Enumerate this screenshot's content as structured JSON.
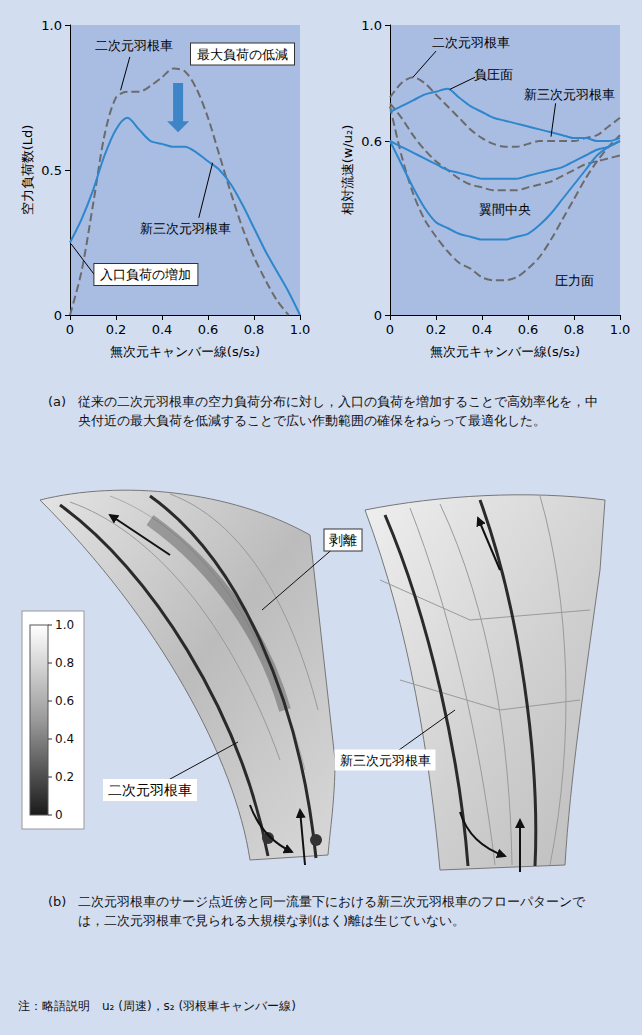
{
  "chart_data": [
    {
      "type": "line",
      "xlabel": "無次元キャンバー線(s/s₂)",
      "ylabel": "空力負荷数(Ld)",
      "x": [
        0,
        0.05,
        0.1,
        0.15,
        0.2,
        0.25,
        0.3,
        0.35,
        0.4,
        0.45,
        0.5,
        0.55,
        0.6,
        0.65,
        0.7,
        0.75,
        0.8,
        0.85,
        0.9,
        0.95,
        1.0
      ],
      "xlim": [
        0,
        1
      ],
      "ylim": [
        0,
        1
      ],
      "xticks": [
        0,
        0.2,
        0.4,
        0.6,
        0.8,
        {
          "value": 1,
          "label": "1.0"
        }
      ],
      "yticks": [
        0,
        0.5,
        {
          "value": 1,
          "label": "1.0"
        }
      ],
      "grid": false,
      "series": [
        {
          "name": "二次元羽根車",
          "color": "#6b6b6b",
          "line_style": "dashed",
          "values": [
            0,
            0.15,
            0.38,
            0.62,
            0.75,
            0.77,
            0.77,
            0.79,
            0.82,
            0.85,
            0.84,
            0.78,
            0.68,
            0.55,
            0.42,
            0.3,
            0.2,
            0.12,
            0.05,
            0.0,
            null
          ]
        },
        {
          "name": "新三次元羽根車",
          "color": "#2e86cc",
          "line_style": "solid",
          "values": [
            0.25,
            0.33,
            0.43,
            0.55,
            0.64,
            0.68,
            0.64,
            0.6,
            0.59,
            0.58,
            0.58,
            0.56,
            0.53,
            0.5,
            0.45,
            0.38,
            0.3,
            0.22,
            0.15,
            0.08,
            0.0
          ]
        }
      ],
      "annotations": [
        "最大負荷の低減",
        "入口負荷の増加"
      ]
    },
    {
      "type": "line",
      "xlabel": "無次元キャンバー線(s/s₂)",
      "ylabel": "相対流速(w/u₂)",
      "x": [
        0,
        0.05,
        0.1,
        0.15,
        0.2,
        0.25,
        0.3,
        0.35,
        0.4,
        0.45,
        0.5,
        0.55,
        0.6,
        0.65,
        0.7,
        0.75,
        0.8,
        0.85,
        0.9,
        0.95,
        1.0
      ],
      "xlim": [
        0,
        1
      ],
      "ylim": [
        0,
        1
      ],
      "xticks": [
        0,
        0.2,
        0.4,
        0.6,
        0.8,
        {
          "value": 1,
          "label": "1.0"
        }
      ],
      "yticks": [
        0,
        0.6,
        {
          "value": 1,
          "label": "1.0"
        }
      ],
      "grid": false,
      "curve_names": [
        "負圧面",
        "翼間中央",
        "圧力面"
      ],
      "series": [
        {
          "name": "二次元羽根車",
          "color": "#6b6b6b",
          "line_style": "dashed",
          "values": [
            [
              0.75,
              0.8,
              0.82,
              0.8,
              0.76,
              0.72,
              0.68,
              0.64,
              0.61,
              0.59,
              0.58,
              0.58,
              0.59,
              0.6,
              0.6,
              0.6,
              0.6,
              0.61,
              0.62,
              0.65,
              0.68
            ],
            [
              0.73,
              0.68,
              0.62,
              0.57,
              0.53,
              0.5,
              0.47,
              0.45,
              0.44,
              0.43,
              0.43,
              0.43,
              0.44,
              0.45,
              0.46,
              0.48,
              0.5,
              0.52,
              0.53,
              0.54,
              0.55
            ],
            [
              0.72,
              0.55,
              0.42,
              0.33,
              0.27,
              0.22,
              0.18,
              0.16,
              0.13,
              0.12,
              0.12,
              0.13,
              0.16,
              0.2,
              0.26,
              0.33,
              0.4,
              0.47,
              0.53,
              0.58,
              0.62
            ]
          ]
        },
        {
          "name": "新三次元羽根車",
          "color": "#2e86cc",
          "line_style": "solid",
          "values": [
            [
              0.7,
              0.72,
              0.74,
              0.76,
              0.77,
              0.78,
              0.75,
              0.72,
              0.7,
              0.68,
              0.67,
              0.66,
              0.65,
              0.64,
              0.63,
              0.62,
              0.61,
              0.61,
              0.6,
              0.6,
              0.61
            ],
            [
              0.6,
              0.58,
              0.56,
              0.54,
              0.52,
              0.5,
              0.49,
              0.48,
              0.47,
              0.47,
              0.47,
              0.47,
              0.48,
              0.49,
              0.5,
              0.51,
              0.53,
              0.55,
              0.57,
              0.58,
              0.6
            ],
            [
              0.6,
              0.52,
              0.44,
              0.37,
              0.32,
              0.3,
              0.28,
              0.27,
              0.26,
              0.26,
              0.26,
              0.27,
              0.28,
              0.31,
              0.35,
              0.4,
              0.45,
              0.5,
              0.55,
              0.58,
              0.6
            ]
          ]
        }
      ]
    }
  ],
  "caption_a": {
    "label": "(a)",
    "text": "従来の二次元羽根車の空力負荷分布に対し，入口の負荷を増加することで高効率化を，中央付近の最大負荷を低減することで広い作動範囲の確保をねらって最適化した。"
  },
  "panel_b": {
    "labels": {
      "separation": "剥離",
      "two_d": "二次元羽根車",
      "three_d": "新三次元羽根車"
    },
    "colorbar": {
      "range": [
        0,
        1
      ],
      "ticks": [
        0,
        0.2,
        0.4,
        0.6,
        0.8,
        {
          "value": 1,
          "label": "1.0"
        }
      ]
    }
  },
  "caption_b": {
    "label": "(b)",
    "text": "二次元羽根車のサージ点近傍と同一流量下における新三次元羽根車のフローパターンでは，二次元羽根車で見られる大規模な剥(はく)離は生じていない。"
  },
  "note": "注：略語説明　u₂ (周速)，s₂ (羽根車キャンバー線)"
}
